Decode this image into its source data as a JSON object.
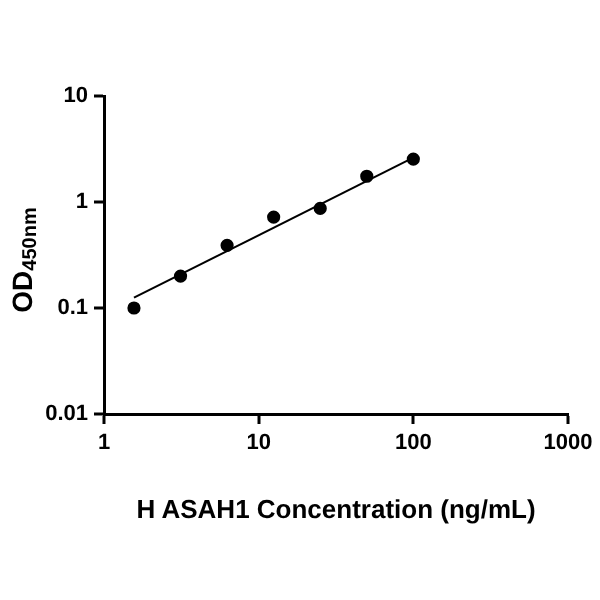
{
  "chart_data": {
    "type": "scatter",
    "xlabel": "H ASAH1 Concentration (ng/mL)",
    "ylabel": "OD$_{450nm}$",
    "log": "xy",
    "marker": "circle",
    "xlim": [
      1,
      1000
    ],
    "xticks": [
      1,
      10,
      100,
      1000
    ],
    "ylim": [
      0.01,
      10
    ],
    "yticks": [
      0.01,
      0.1,
      1,
      10
    ],
    "series": [
      {
        "color": "#000000",
        "x": [
          1.5625,
          3.125,
          6.25,
          12.5,
          25,
          50,
          100
        ],
        "values": [
          0.1,
          0.2,
          0.39,
          0.72,
          0.87,
          1.75,
          2.54
        ]
      },
      {
        "type": "line",
        "color": "#000000",
        "line_style": "solid",
        "marker": "none",
        "x": [
          1.5625,
          100
        ],
        "values": [
          0.125,
          2.62
        ]
      }
    ]
  }
}
